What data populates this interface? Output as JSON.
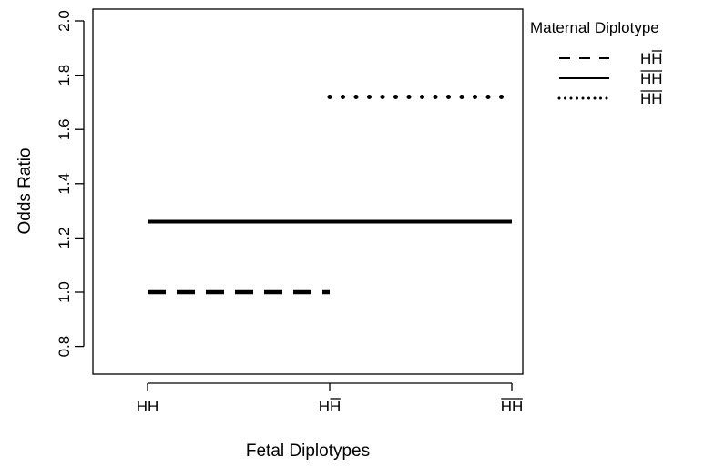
{
  "chart_data": {
    "type": "line",
    "title": "",
    "xlabel": "Fetal Diplotypes",
    "ylabel": "Odds Ratio",
    "x_categories": [
      {
        "base": "HH",
        "bar_from": 0,
        "bar_to": 0
      },
      {
        "base": "HH",
        "bar_from": 1,
        "bar_to": 2
      },
      {
        "base": "HH",
        "bar_from": 0,
        "bar_to": 2
      }
    ],
    "y_ticks": [
      "0.8",
      "1.0",
      "1.2",
      "1.4",
      "1.6",
      "1.8",
      "2.0"
    ],
    "y_tick_values": [
      0.8,
      1.0,
      1.2,
      1.4,
      1.6,
      1.8,
      2.0
    ],
    "ylim": [
      0.7,
      2.05
    ],
    "grid": false,
    "legend": {
      "title": "Maternal Diplotype",
      "placement": "top-right-outside"
    },
    "series": [
      {
        "label": {
          "base": "HH",
          "bar_from": 1,
          "bar_to": 2
        },
        "dash": "dashed",
        "points": [
          {
            "x": 0,
            "y": 1.0
          },
          {
            "x": 1,
            "y": 1.0
          }
        ]
      },
      {
        "label": {
          "base": "HH",
          "bar_from": 0,
          "bar_to": 2
        },
        "dash": "solid",
        "points": [
          {
            "x": 0,
            "y": 1.26
          },
          {
            "x": 2,
            "y": 1.26
          }
        ]
      },
      {
        "label": {
          "base": "HH",
          "bar_from": 0,
          "bar_to": 2
        },
        "dash": "dotted",
        "points": [
          {
            "x": 1,
            "y": 1.72
          },
          {
            "x": 2,
            "y": 1.72
          }
        ]
      }
    ]
  }
}
